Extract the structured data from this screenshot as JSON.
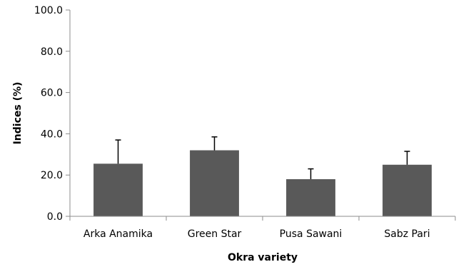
{
  "chart_data": {
    "type": "bar",
    "title": "",
    "xlabel": "Okra variety",
    "ylabel": "Indices (%)",
    "categories": [
      "Arka Anamika",
      "Green Star",
      "Pusa Sawani",
      "Sabz Pari"
    ],
    "values": [
      25.5,
      32.0,
      18.0,
      25.0
    ],
    "error_upper": [
      11.5,
      6.5,
      5.0,
      6.5
    ],
    "ylim": [
      0,
      100
    ],
    "yticks": [
      0,
      20,
      40,
      60,
      80,
      100
    ],
    "ytick_labels": [
      "0.0",
      "20.0",
      "40.0",
      "60.0",
      "80.0",
      "100.0"
    ],
    "grid": false,
    "legend": "none",
    "bar_color": "#595959",
    "axis_color": "#8c8c8c"
  }
}
